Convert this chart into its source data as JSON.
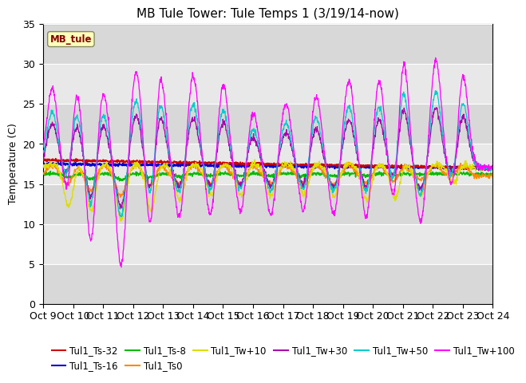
{
  "title": "MB Tule Tower: Tule Temps 1 (3/19/14-now)",
  "ylabel": "Temperature (C)",
  "ylim": [
    0,
    35
  ],
  "yticks": [
    0,
    5,
    10,
    15,
    20,
    25,
    30,
    35
  ],
  "xtick_labels": [
    "Oct 9",
    "Oct 10",
    "Oct 11",
    "Oct 12",
    "Oct 13",
    "Oct 14",
    "Oct 15",
    "Oct 16",
    "Oct 17",
    "Oct 18",
    "Oct 19",
    "Oct 20",
    "Oct 21",
    "Oct 22",
    "Oct 23",
    "Oct 24"
  ],
  "series_colors": {
    "Tul1_Ts-32": "#cc0000",
    "Tul1_Ts-16": "#0000cc",
    "Tul1_Ts-8": "#00bb00",
    "Tul1_Ts0": "#ff8800",
    "Tul1_Tw+10": "#dddd00",
    "Tul1_Tw+30": "#aa00aa",
    "Tul1_Tw+50": "#00cccc",
    "Tul1_Tw+100": "#ff00ff"
  },
  "plot_bg_color": "#e8e8e8",
  "title_fontsize": 11,
  "axis_fontsize": 9,
  "legend_fontsize": 8.5,
  "band_colors": [
    "#d8d8d8",
    "#e8e8e8"
  ]
}
